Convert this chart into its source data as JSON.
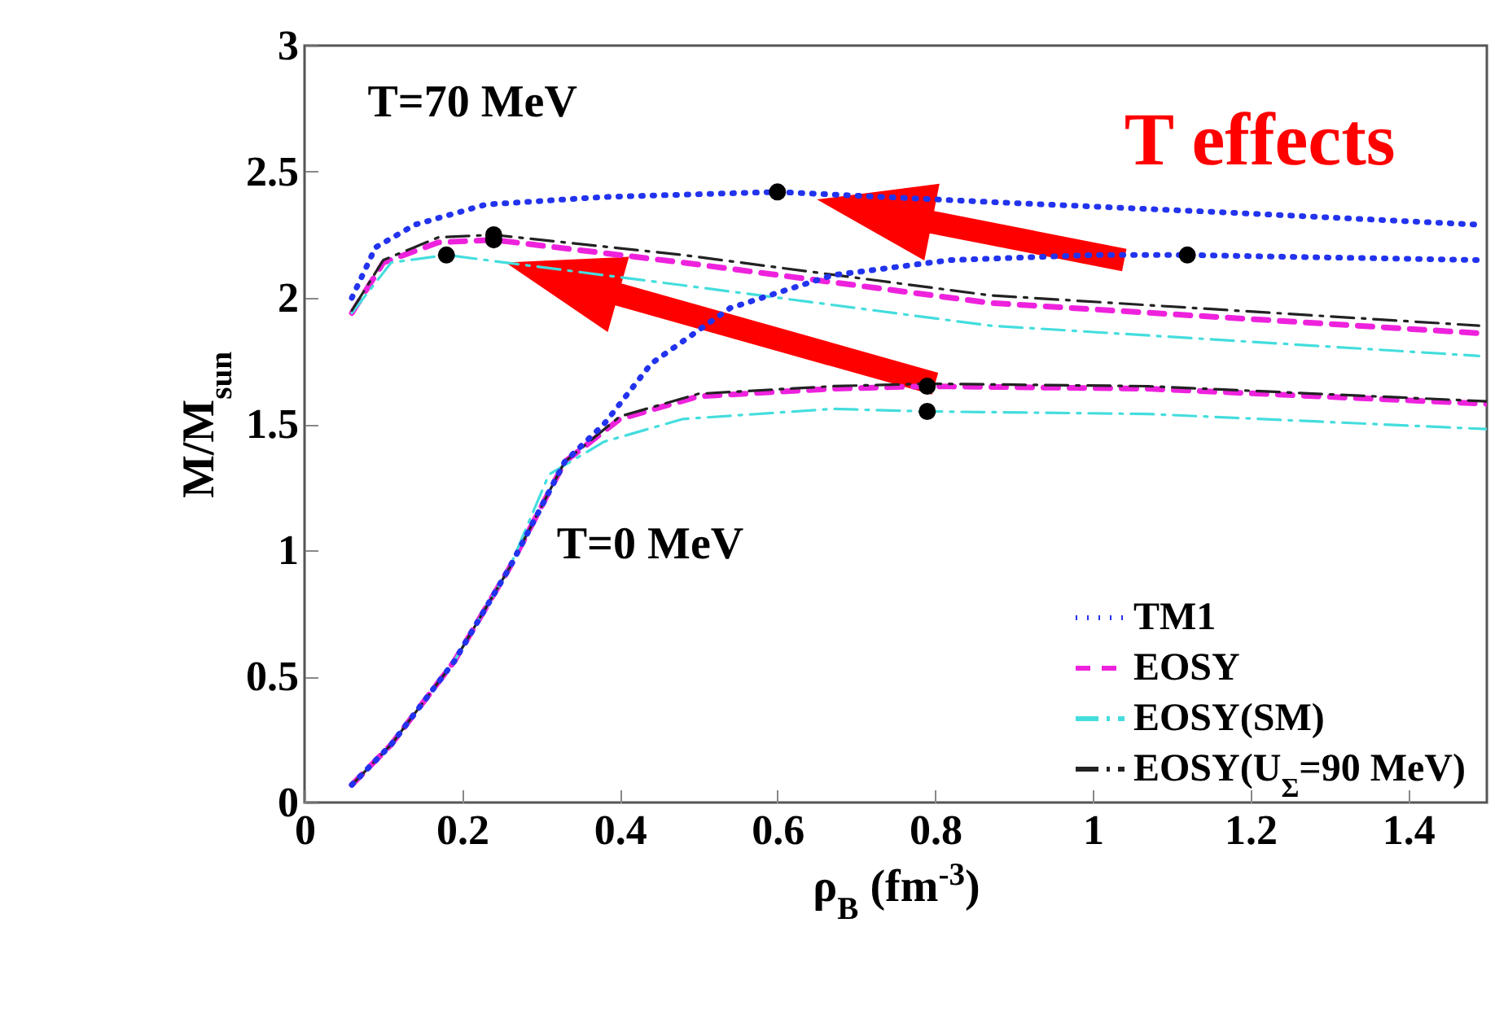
{
  "chart_data": {
    "type": "line",
    "xlabel": "ρ$_{B}$ (fm$^{-3}$)",
    "ylabel": "M/M$_{sun}$",
    "annotations": [
      "T=70 MeV",
      "T=0 MeV",
      "T effects"
    ],
    "xlim": [
      0,
      1.5
    ],
    "ylim": [
      0,
      3
    ],
    "xticks": [
      {
        "value": 0,
        "label": "0"
      },
      0.2,
      0.4,
      0.6,
      0.8,
      {
        "value": 1,
        "label": "1"
      },
      1.2,
      1.4
    ],
    "yticks": [
      {
        "value": 0,
        "label": "0"
      },
      0.5,
      {
        "value": 1,
        "label": "1"
      },
      1.5,
      {
        "value": 2,
        "label": "2"
      },
      2.5,
      {
        "value": 3,
        "label": "3"
      }
    ],
    "grid": false,
    "legend": "bottom right",
    "series": [
      {
        "name": "TM1",
        "color": "#2233ee",
        "line_style": "dotted",
        "x": [
          0.06,
          0.11,
          0.19,
          0.26,
          0.33,
          0.38,
          0.44,
          0.54,
          0.67,
          0.82,
          1.0,
          1.12,
          1.3,
          1.49
        ],
        "values": [
          0.07,
          0.23,
          0.56,
          0.93,
          1.35,
          1.5,
          1.74,
          1.96,
          2.09,
          2.15,
          2.17,
          2.17,
          2.16,
          2.15
        ]
      },
      {
        "color": "#2233ee",
        "line_style": "dotted",
        "x": [
          0.06,
          0.09,
          0.14,
          0.23,
          0.38,
          0.6,
          0.87,
          1.16,
          1.49
        ],
        "values": [
          2.0,
          2.2,
          2.29,
          2.37,
          2.4,
          2.42,
          2.38,
          2.34,
          2.29
        ]
      },
      {
        "name": "EOSY",
        "color": "#ee22dd",
        "line_style": "dashed",
        "x": [
          0.06,
          0.11,
          0.19,
          0.26,
          0.33,
          0.4,
          0.5,
          0.67,
          0.79,
          1.07,
          1.5
        ],
        "values": [
          0.07,
          0.23,
          0.56,
          0.93,
          1.35,
          1.52,
          1.61,
          1.64,
          1.65,
          1.64,
          1.58
        ]
      },
      {
        "color": "#ee22dd",
        "line_style": "dashed",
        "x": [
          0.06,
          0.1,
          0.17,
          0.24,
          0.48,
          0.87,
          1.49
        ],
        "values": [
          1.94,
          2.14,
          2.22,
          2.23,
          2.14,
          1.98,
          1.86
        ]
      },
      {
        "name": "EOSY(SM)",
        "color": "#44dddd",
        "line_style": "dashdot",
        "x": [
          0.19,
          0.26,
          0.31,
          0.38,
          0.48,
          0.67,
          0.79,
          1.07,
          1.5
        ],
        "values": [
          0.56,
          0.93,
          1.3,
          1.43,
          1.52,
          1.56,
          1.55,
          1.54,
          1.48
        ]
      },
      {
        "color": "#44dddd",
        "line_style": "dashdot",
        "x": [
          0.06,
          0.11,
          0.18,
          0.48,
          0.87,
          1.49
        ],
        "values": [
          1.94,
          2.14,
          2.17,
          2.05,
          1.89,
          1.77
        ]
      },
      {
        "name": "EOSY(U$_{Σ}$=90 MeV)",
        "color": "#222222",
        "line_style": "dashdot",
        "x": [
          0.06,
          0.11,
          0.19,
          0.26,
          0.33,
          0.4,
          0.5,
          0.67,
          0.79,
          1.07,
          1.5
        ],
        "values": [
          0.07,
          0.23,
          0.56,
          0.93,
          1.35,
          1.53,
          1.62,
          1.65,
          1.66,
          1.65,
          1.59
        ]
      },
      {
        "color": "#222222",
        "line_style": "dashdot",
        "x": [
          0.06,
          0.1,
          0.17,
          0.24,
          0.48,
          0.87,
          1.49
        ],
        "values": [
          1.95,
          2.15,
          2.24,
          2.25,
          2.17,
          2.01,
          1.89
        ]
      },
      {
        "type": "scatter",
        "color": "#000000",
        "marker": "circle",
        "x": [
          0.6,
          1.12,
          0.24,
          0.24,
          0.18,
          0.79,
          0.79
        ],
        "values": [
          2.42,
          2.17,
          2.23,
          2.25,
          2.17,
          1.65,
          1.55
        ]
      }
    ]
  }
}
